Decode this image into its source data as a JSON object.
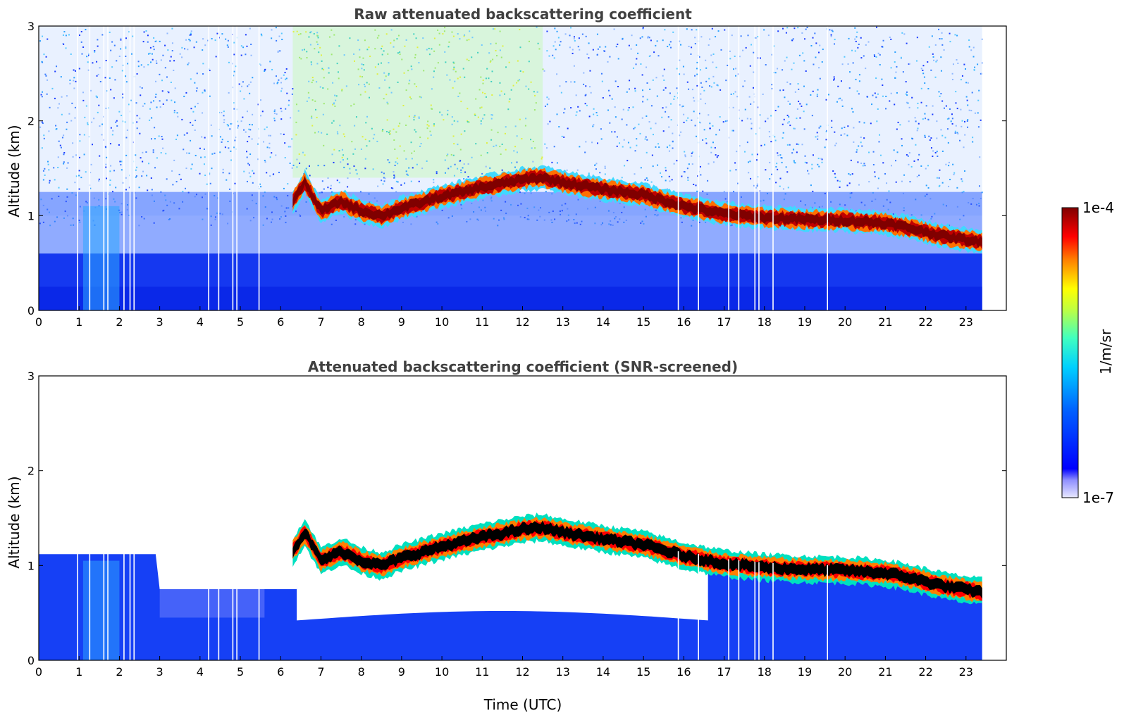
{
  "chart_data": [
    {
      "type": "heatmap",
      "title": "Raw attenuated backscattering coefficient",
      "xlabel": "",
      "ylabel": "Altitude (km)",
      "xlim": [
        0,
        24
      ],
      "ylim": [
        0,
        3
      ],
      "x_ticks": [
        0,
        1,
        2,
        3,
        4,
        5,
        6,
        7,
        8,
        9,
        10,
        11,
        12,
        13,
        14,
        15,
        16,
        17,
        18,
        19,
        20,
        21,
        22,
        23
      ],
      "y_ticks": [
        0,
        1,
        2,
        3
      ],
      "data_end_hour": 23.4,
      "screened": false,
      "layer": {
        "x": [
          6.3,
          6.6,
          7.0,
          7.5,
          8.0,
          8.5,
          9.0,
          10.0,
          11.0,
          12.0,
          12.5,
          13.0,
          14.0,
          15.0,
          16.0,
          17.0,
          18.0,
          19.0,
          20.0,
          21.0,
          21.5,
          22.5,
          23.4
        ],
        "y": [
          1.15,
          1.35,
          1.05,
          1.15,
          1.05,
          1.0,
          1.08,
          1.2,
          1.3,
          1.38,
          1.4,
          1.35,
          1.28,
          1.22,
          1.1,
          1.02,
          0.98,
          0.96,
          0.95,
          0.92,
          0.88,
          0.78,
          0.72
        ]
      },
      "missing_profiles_hours": [
        0.95,
        1.25,
        1.6,
        1.7,
        2.1,
        2.25,
        2.35,
        4.2,
        4.45,
        4.8,
        4.9,
        5.45,
        15.85,
        16.35,
        17.1,
        17.35,
        17.75,
        17.85,
        18.2,
        19.55
      ]
    },
    {
      "type": "heatmap",
      "title": "Attenuated backscattering coefficient (SNR-screened)",
      "xlabel": "Time (UTC)",
      "ylabel": "Altitude (km)",
      "xlim": [
        0,
        24
      ],
      "ylim": [
        0,
        3
      ],
      "x_ticks": [
        0,
        1,
        2,
        3,
        4,
        5,
        6,
        7,
        8,
        9,
        10,
        11,
        12,
        13,
        14,
        15,
        16,
        17,
        18,
        19,
        20,
        21,
        22,
        23
      ],
      "y_ticks": [
        0,
        1,
        2,
        3
      ],
      "data_end_hour": 23.4,
      "screened": true,
      "layer": {
        "x": [
          6.3,
          6.6,
          7.0,
          7.5,
          8.0,
          8.5,
          9.0,
          10.0,
          11.0,
          12.0,
          12.5,
          13.0,
          14.0,
          15.0,
          16.0,
          17.0,
          18.0,
          19.0,
          20.0,
          21.0,
          21.5,
          22.5,
          23.4
        ],
        "y": [
          1.15,
          1.35,
          1.05,
          1.15,
          1.05,
          1.0,
          1.08,
          1.2,
          1.3,
          1.38,
          1.4,
          1.35,
          1.28,
          1.22,
          1.1,
          1.02,
          0.98,
          0.96,
          0.95,
          0.92,
          0.88,
          0.78,
          0.72
        ]
      },
      "missing_profiles_hours": [
        0.95,
        1.25,
        1.6,
        1.7,
        2.1,
        2.25,
        2.35,
        4.2,
        4.45,
        4.8,
        4.9,
        5.45,
        15.85,
        16.35,
        17.1,
        17.35,
        17.75,
        17.85,
        18.2,
        19.55
      ]
    }
  ],
  "colorbar": {
    "label": "1/m/sr",
    "min_label": "1e-7",
    "max_label": "1e-4",
    "scale": "log",
    "colormap": "jet",
    "colors": [
      "#e8e8ff",
      "#b0b0ff",
      "#0000ff",
      "#0050ff",
      "#00a0ff",
      "#00e0ff",
      "#40ffc0",
      "#a0ff60",
      "#ffff00",
      "#ffb000",
      "#ff5000",
      "#ff0000",
      "#b00000",
      "#800000"
    ]
  }
}
